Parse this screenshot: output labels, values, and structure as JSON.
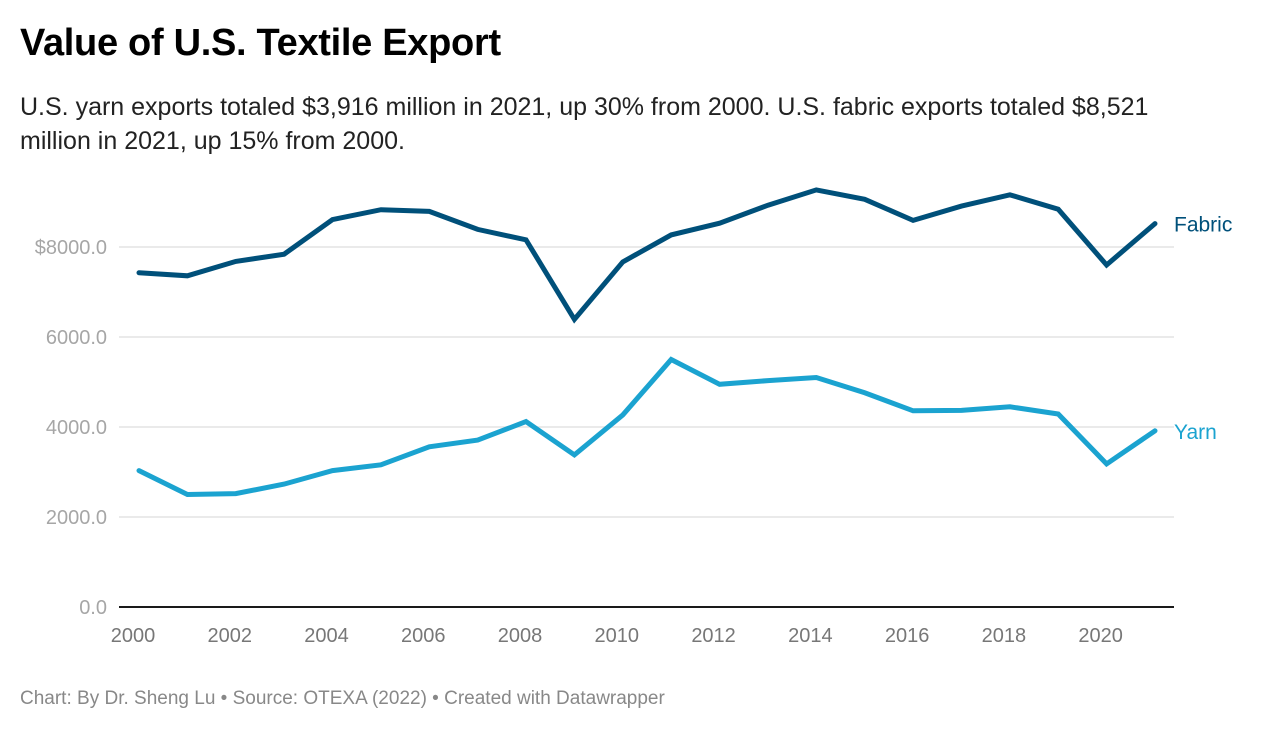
{
  "title": "Value of U.S. Textile Export",
  "subtitle": "U.S. yarn exports totaled $3,916 million in 2021, up 30% from 2000. U.S. fabric exports totaled $8,521 million in 2021, up 15% from 2000.",
  "footer": "Chart: By Dr. Sheng Lu • Source: OTEXA (2022) • Created with Datawrapper",
  "chart_data": {
    "type": "line",
    "title": "Value of U.S. Textile Export",
    "xlabel": "",
    "ylabel": "",
    "x": [
      2000,
      2001,
      2002,
      2003,
      2004,
      2005,
      2006,
      2007,
      2008,
      2009,
      2010,
      2011,
      2012,
      2013,
      2014,
      2015,
      2016,
      2017,
      2018,
      2019,
      2020,
      2021
    ],
    "xlim": [
      2000,
      2021
    ],
    "ylim": [
      0,
      9500
    ],
    "grid": true,
    "legend": "direct labels at line ends (right)",
    "y_ticks": [
      0,
      2000,
      4000,
      6000,
      8000
    ],
    "y_tick_labels": [
      "0.0",
      "2000.0",
      "4000.0",
      "6000.0",
      "$8000.0"
    ],
    "x_ticks": [
      2000,
      2002,
      2004,
      2006,
      2008,
      2010,
      2012,
      2014,
      2016,
      2018,
      2020
    ],
    "x_tick_labels": [
      "2000",
      "2002",
      "2004",
      "2006",
      "2008",
      "2010",
      "2012",
      "2014",
      "2016",
      "2018",
      "2020"
    ],
    "series": [
      {
        "name": "Fabric",
        "color": "#00507a",
        "values": [
          7430,
          7360,
          7680,
          7840,
          8610,
          8830,
          8790,
          8390,
          8160,
          6390,
          7670,
          8270,
          8530,
          8930,
          9270,
          9060,
          8590,
          8910,
          9160,
          8840,
          7600,
          8521
        ]
      },
      {
        "name": "Yarn",
        "color": "#1ba3d0",
        "values": [
          3030,
          2500,
          2520,
          2730,
          3030,
          3160,
          3560,
          3710,
          4120,
          3380,
          4270,
          5500,
          4950,
          5030,
          5100,
          4760,
          4360,
          4370,
          4450,
          4290,
          3180,
          3916
        ]
      }
    ]
  }
}
